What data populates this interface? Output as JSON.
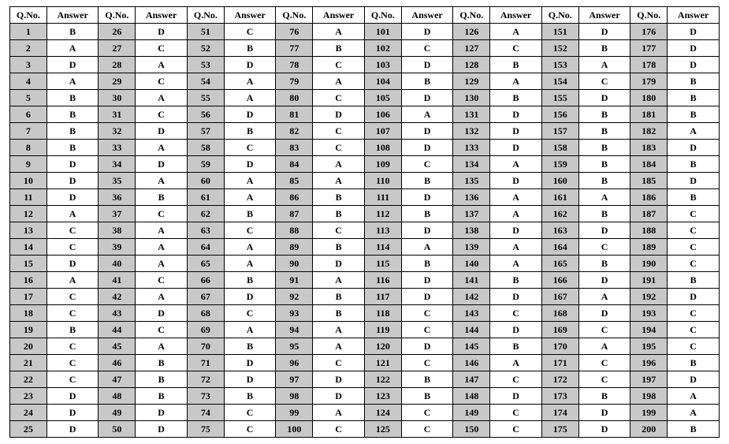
{
  "headers": {
    "qno": "Q.No.",
    "answer": "Answer"
  },
  "style": {
    "qno_bg": "#c8c8c8",
    "ans_bg": "#ffffff",
    "border_color": "#000000",
    "font_family": "Times New Roman"
  },
  "columns": 8,
  "rows_per_column": 25,
  "answers": {
    "1": "B",
    "2": "A",
    "3": "D",
    "4": "A",
    "5": "B",
    "6": "B",
    "7": "B",
    "8": "B",
    "9": "D",
    "10": "D",
    "11": "D",
    "12": "A",
    "13": "C",
    "14": "C",
    "15": "D",
    "16": "A",
    "17": "C",
    "18": "C",
    "19": "B",
    "20": "C",
    "21": "C",
    "22": "C",
    "23": "D",
    "24": "D",
    "25": "D",
    "26": "D",
    "27": "C",
    "28": "A",
    "29": "C",
    "30": "A",
    "31": "C",
    "32": "D",
    "33": "A",
    "34": "D",
    "35": "A",
    "36": "B",
    "37": "C",
    "38": "A",
    "39": "A",
    "40": "A",
    "41": "C",
    "42": "A",
    "43": "D",
    "44": "C",
    "45": "A",
    "46": "B",
    "47": "B",
    "48": "B",
    "49": "D",
    "50": "D",
    "51": "C",
    "52": "B",
    "53": "D",
    "54": "A",
    "55": "A",
    "56": "D",
    "57": "B",
    "58": "C",
    "59": "D",
    "60": "A",
    "61": "A",
    "62": "B",
    "63": "C",
    "64": "A",
    "65": "A",
    "66": "B",
    "67": "D",
    "68": "C",
    "69": "A",
    "70": "B",
    "71": "D",
    "72": "D",
    "73": "B",
    "74": "C",
    "75": "C",
    "76": "A",
    "77": "B",
    "78": "C",
    "79": "A",
    "80": "C",
    "81": "D",
    "82": "C",
    "83": "C",
    "84": "A",
    "85": "A",
    "86": "B",
    "87": "B",
    "88": "C",
    "89": "B",
    "90": "D",
    "91": "A",
    "92": "B",
    "93": "B",
    "94": "A",
    "95": "A",
    "96": "C",
    "97": "D",
    "98": "D",
    "99": "A",
    "100": "C",
    "101": "D",
    "102": "C",
    "103": "D",
    "104": "B",
    "105": "D",
    "106": "A",
    "107": "D",
    "108": "D",
    "109": "C",
    "110": "B",
    "111": "D",
    "112": "B",
    "113": "D",
    "114": "A",
    "115": "B",
    "116": "D",
    "117": "D",
    "118": "C",
    "119": "C",
    "120": "D",
    "121": "C",
    "122": "B",
    "123": "B",
    "124": "C",
    "125": "C",
    "126": "A",
    "127": "C",
    "128": "B",
    "129": "A",
    "130": "B",
    "131": "D",
    "132": "D",
    "133": "D",
    "134": "A",
    "135": "D",
    "136": "A",
    "137": "A",
    "138": "D",
    "139": "A",
    "140": "A",
    "141": "B",
    "142": "D",
    "143": "C",
    "144": "D",
    "145": "B",
    "146": "A",
    "147": "C",
    "148": "D",
    "149": "C",
    "150": "C",
    "151": "D",
    "152": "B",
    "153": "A",
    "154": "C",
    "155": "D",
    "156": "B",
    "157": "B",
    "158": "B",
    "159": "B",
    "160": "B",
    "161": "A",
    "162": "B",
    "163": "D",
    "164": "C",
    "165": "B",
    "166": "D",
    "167": "A",
    "168": "D",
    "169": "C",
    "170": "A",
    "171": "C",
    "172": "C",
    "173": "B",
    "174": "D",
    "175": "D",
    "176": "D",
    "177": "D",
    "178": "D",
    "179": "B",
    "180": "B",
    "181": "B",
    "182": "A",
    "183": "D",
    "184": "B",
    "185": "D",
    "186": "B",
    "187": "C",
    "188": "C",
    "189": "C",
    "190": "C",
    "191": "B",
    "192": "D",
    "193": "C",
    "194": "C",
    "195": "C",
    "196": "B",
    "197": "D",
    "198": "A",
    "199": "A",
    "200": "B"
  }
}
